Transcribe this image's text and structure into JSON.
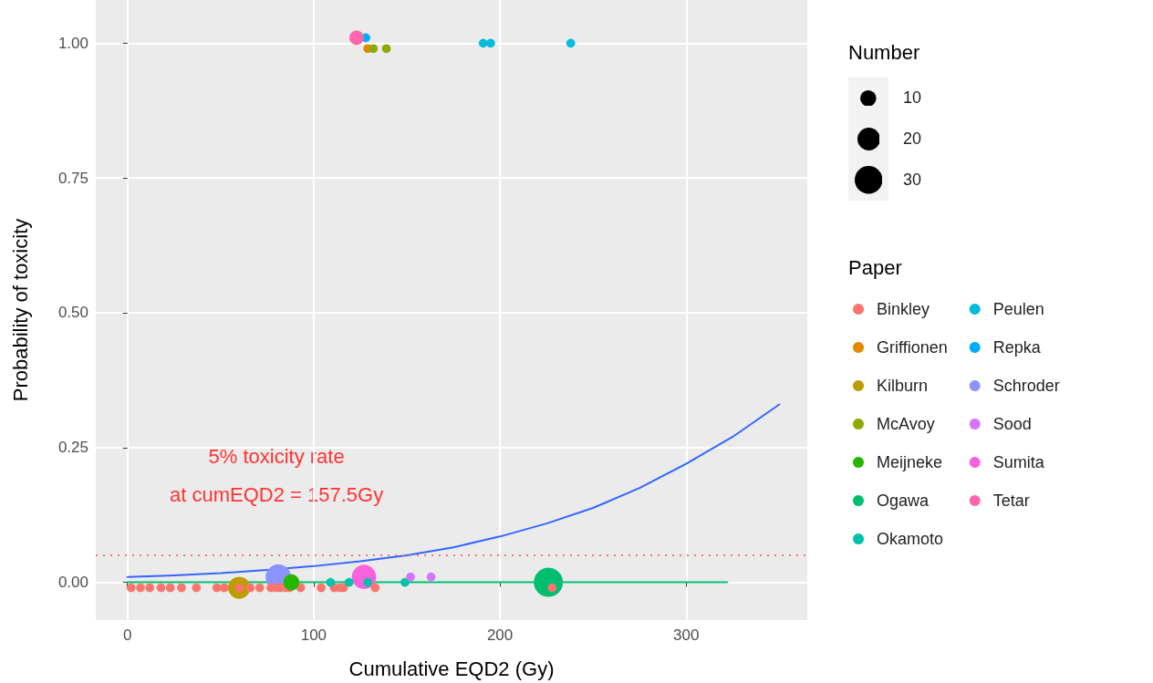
{
  "chart_data": {
    "type": "bubble",
    "xlabel": "Cumulative EQD2 (Gy)",
    "ylabel": "Probability of toxicity",
    "legend_title": "Paper",
    "legend": "right",
    "grid": true,
    "marker": "circle",
    "annotations": [
      "Number"
    ],
    "size_legend": [
      10,
      20,
      30
    ],
    "xlim": [
      -17,
      365
    ],
    "xticks": [
      0,
      100,
      200,
      300
    ],
    "ylim": [
      -0.07,
      1.08
    ],
    "yticks": [
      {
        "value": 0,
        "label": "0.00"
      },
      {
        "value": 0.25,
        "label": "0.25"
      },
      {
        "value": 0.5,
        "label": "0.50"
      },
      {
        "value": 0.75,
        "label": "0.75"
      },
      {
        "value": 1,
        "label": "1.00"
      }
    ],
    "ref_lines": [
      {
        "axis": "y",
        "value": 0.05,
        "label": "5% toxicity rate\nat cumEQD2 = 157.5Gy",
        "color": "#f8766d",
        "line_style": "dotted"
      }
    ],
    "series": [
      {
        "name": "Binkley",
        "color": "#f8766d",
        "x": [
          2,
          7,
          12,
          18,
          23,
          29,
          37,
          48,
          52,
          60,
          66,
          71,
          77,
          80,
          82,
          85,
          87,
          93,
          104,
          111,
          114,
          116,
          133,
          228
        ],
        "values": [
          -0.01,
          -0.01,
          -0.01,
          -0.01,
          -0.01,
          -0.01,
          -0.01,
          -0.01,
          -0.01,
          -0.01,
          -0.01,
          -0.01,
          -0.01,
          -0.01,
          -0.01,
          -0.01,
          -0.01,
          -0.01,
          -0.01,
          -0.01,
          -0.01,
          -0.01,
          -0.01,
          -0.01
        ],
        "sizes": [
          3,
          3,
          3,
          3,
          3,
          3,
          3,
          3,
          3,
          3,
          3,
          3,
          3,
          3,
          3,
          3,
          3,
          3,
          3,
          3,
          3,
          3,
          3,
          3
        ]
      },
      {
        "name": "Griffionen",
        "color": "#e18a00",
        "x": [
          129
        ],
        "values": [
          0.99
        ],
        "sizes": [
          3
        ]
      },
      {
        "name": "Kilburn",
        "color": "#be9c00",
        "x": [
          60
        ],
        "values": [
          -0.01
        ],
        "sizes": [
          19
        ]
      },
      {
        "name": "McAvoy",
        "color": "#8cab00",
        "x": [
          132,
          139
        ],
        "values": [
          0.99,
          0.99
        ],
        "sizes": [
          3,
          3
        ]
      },
      {
        "name": "Meijneke",
        "color": "#24b700",
        "x": [
          88
        ],
        "values": [
          0
        ],
        "sizes": [
          10
        ]
      },
      {
        "name": "Ogawa",
        "color": "#00be70",
        "x": [
          226
        ],
        "values": [
          0
        ],
        "sizes": [
          33
        ]
      },
      {
        "name": "Okamoto",
        "color": "#00c1ab",
        "x": [
          109,
          119,
          129,
          149
        ],
        "values": [
          0,
          0,
          0,
          0
        ],
        "sizes": [
          3,
          3,
          3,
          3
        ]
      },
      {
        "name": "Peulen",
        "color": "#00bbda",
        "x": [
          191,
          195,
          238
        ],
        "values": [
          1,
          1,
          1
        ],
        "sizes": [
          3,
          3,
          3
        ]
      },
      {
        "name": "Repka",
        "color": "#00acfc",
        "x": [
          128
        ],
        "values": [
          1.01
        ],
        "sizes": [
          3
        ]
      },
      {
        "name": "Schroder",
        "color": "#8b93ff",
        "x": [
          81
        ],
        "values": [
          0.01
        ],
        "sizes": [
          25
        ]
      },
      {
        "name": "Sood",
        "color": "#d575fe",
        "x": [
          152,
          163
        ],
        "values": [
          0.01,
          0.01
        ],
        "sizes": [
          3,
          3
        ]
      },
      {
        "name": "Sumita",
        "color": "#f962dd",
        "x": [
          127
        ],
        "values": [
          0.01
        ],
        "sizes": [
          23
        ]
      },
      {
        "name": "Tetar",
        "color": "#ff65ac",
        "x": [
          123
        ],
        "values": [
          1.01
        ],
        "sizes": [
          8
        ]
      },
      {
        "type": "line",
        "marker": "none",
        "color": "#00be70",
        "x": [
          0,
          322
        ],
        "values": [
          0,
          0
        ]
      },
      {
        "type": "line",
        "marker": "none",
        "color": "#3366ff",
        "x": [
          0,
          25,
          50,
          75,
          100,
          125,
          150,
          175,
          200,
          225,
          250,
          275,
          300,
          325,
          350
        ],
        "values": [
          0.01,
          0.013,
          0.017,
          0.023,
          0.03,
          0.039,
          0.05,
          0.065,
          0.085,
          0.109,
          0.138,
          0.175,
          0.22,
          0.27,
          0.33
        ]
      }
    ]
  }
}
